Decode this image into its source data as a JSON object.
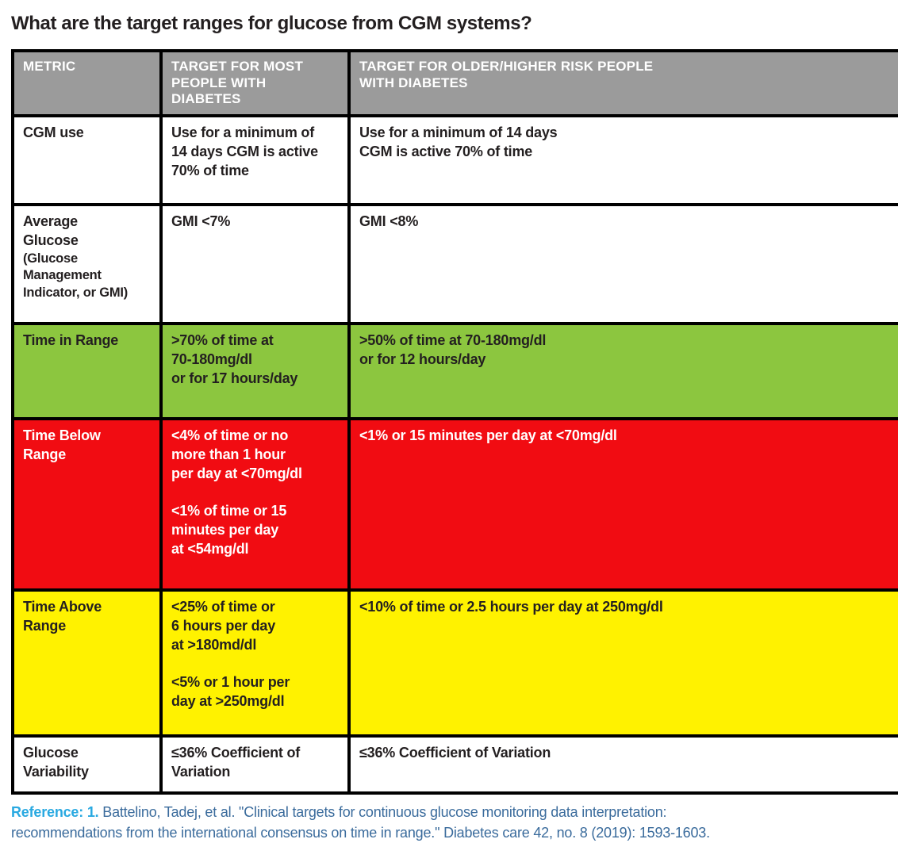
{
  "page": {
    "title": "What are the target ranges for glucose from CGM systems?"
  },
  "table": {
    "headers": {
      "metric": "METRIC",
      "most": "TARGET FOR MOST\nPEOPLE WITH\nDIABETES",
      "older": "TARGET FOR OLDER/HIGHER RISK PEOPLE\nWITH DIABETES"
    },
    "rows": [
      {
        "metric": "CGM use",
        "metric_sub": "",
        "most": "Use for a minimum of\n14 days CGM is active\n70% of time",
        "older": "Use for a minimum of 14 days\nCGM is active 70% of time",
        "bg": "#FFFFFF",
        "fg": "#231F20"
      },
      {
        "metric": "Average\nGlucose",
        "metric_sub": "(Glucose\nManagement\nIndicator, or GMI)",
        "most": "GMI <7%",
        "older": "GMI <8%",
        "bg": "#FFFFFF",
        "fg": "#231F20"
      },
      {
        "metric": "Time in Range",
        "metric_sub": "",
        "most": ">70% of time at\n70-180mg/dl\nor for 17 hours/day",
        "older": ">50% of time at  70-180mg/dl\nor for 12 hours/day",
        "bg": "#8CC63F",
        "fg": "#231F20"
      },
      {
        "metric": "Time Below\nRange",
        "metric_sub": "",
        "most": "<4% of time or no\nmore than 1 hour\nper day at <70mg/dl\n\n<1% of time or 15\nminutes per day\nat <54mg/dl",
        "older": "<1% or 15 minutes per day at <70mg/dl",
        "bg": "#F10C12",
        "fg": "#FFFFFF"
      },
      {
        "metric": "Time Above\nRange",
        "metric_sub": "",
        "most": "<25% of time or\n6 hours per day\nat >180md/dl\n\n<5% or 1 hour per\nday at >250mg/dl",
        "older": "<10% of time or 2.5 hours per day at 250mg/dl",
        "bg": "#FFF200",
        "fg": "#231F20"
      },
      {
        "metric": "Glucose\nVariability",
        "metric_sub": "",
        "most": "≤36% Coefficient of\nVariation",
        "older": "≤36% Coefficient of Variation",
        "bg": "#FFFFFF",
        "fg": "#231F20"
      }
    ]
  },
  "reference": {
    "label": "Reference: 1.",
    "text": " Battelino, Tadej, et al. \"Clinical targets for continuous glucose monitoring data interpretation:\nrecommendations from the international consensus on time in range.\" Diabetes care 42, no. 8 (2019): 1593-1603."
  },
  "colors": {
    "title_text": "#231F20",
    "header_bg": "#9B9B9B",
    "header_text": "#FFFFFF",
    "row_green_bg": "#8CC63F",
    "row_red_bg": "#F10C12",
    "row_yellow_bg": "#FFF200",
    "dark_text": "#231F20",
    "white_text": "#FFFFFF",
    "border": "#000000",
    "reference_label": "#29A9E1",
    "reference_text": "#3A6B9C"
  }
}
